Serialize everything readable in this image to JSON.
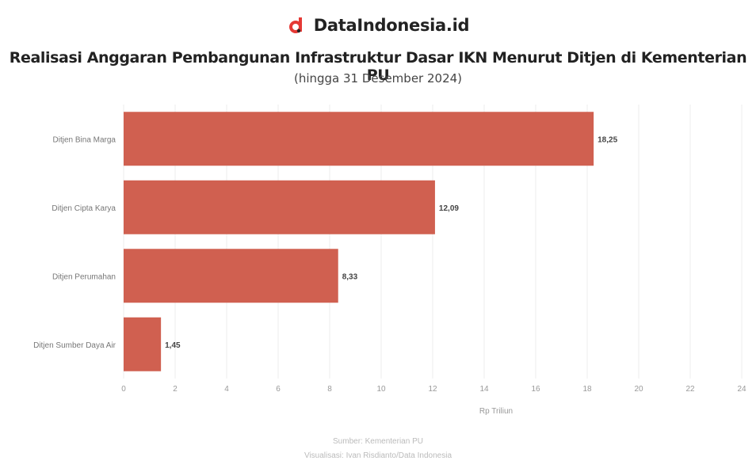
{
  "brand": {
    "name": "DataIndonesia.id",
    "logo_icon": "dataindonesia-logo-icon",
    "accent": "#e53935"
  },
  "chart_data": {
    "type": "bar",
    "orientation": "horizontal",
    "title": "Realisasi Anggaran Pembangunan Infrastruktur Dasar IKN Menurut Ditjen di Kementerian PU",
    "subtitle": "(hingga 31 Desember 2024)",
    "categories": [
      "Ditjen Bina Marga",
      "Ditjen Cipta Karya",
      "Ditjen Perumahan",
      "Ditjen Sumber Daya Air"
    ],
    "values": [
      18.25,
      12.09,
      8.33,
      1.45
    ],
    "value_labels": [
      "18,25",
      "12,09",
      "8,33",
      "1,45"
    ],
    "xlim": [
      0,
      24
    ],
    "xticks": [
      "0",
      "2",
      "4",
      "6",
      "8",
      "10",
      "12",
      "14",
      "16",
      "18",
      "20",
      "22",
      "24"
    ],
    "xlabel": "Rp Triliun",
    "ylabel": "",
    "bar_color": "#d06050",
    "grid": true
  },
  "footer": {
    "source": "Sumber: Kementerian PU",
    "visualization": "Visualisasi: Ivan Risdianto/Data Indonesia"
  }
}
